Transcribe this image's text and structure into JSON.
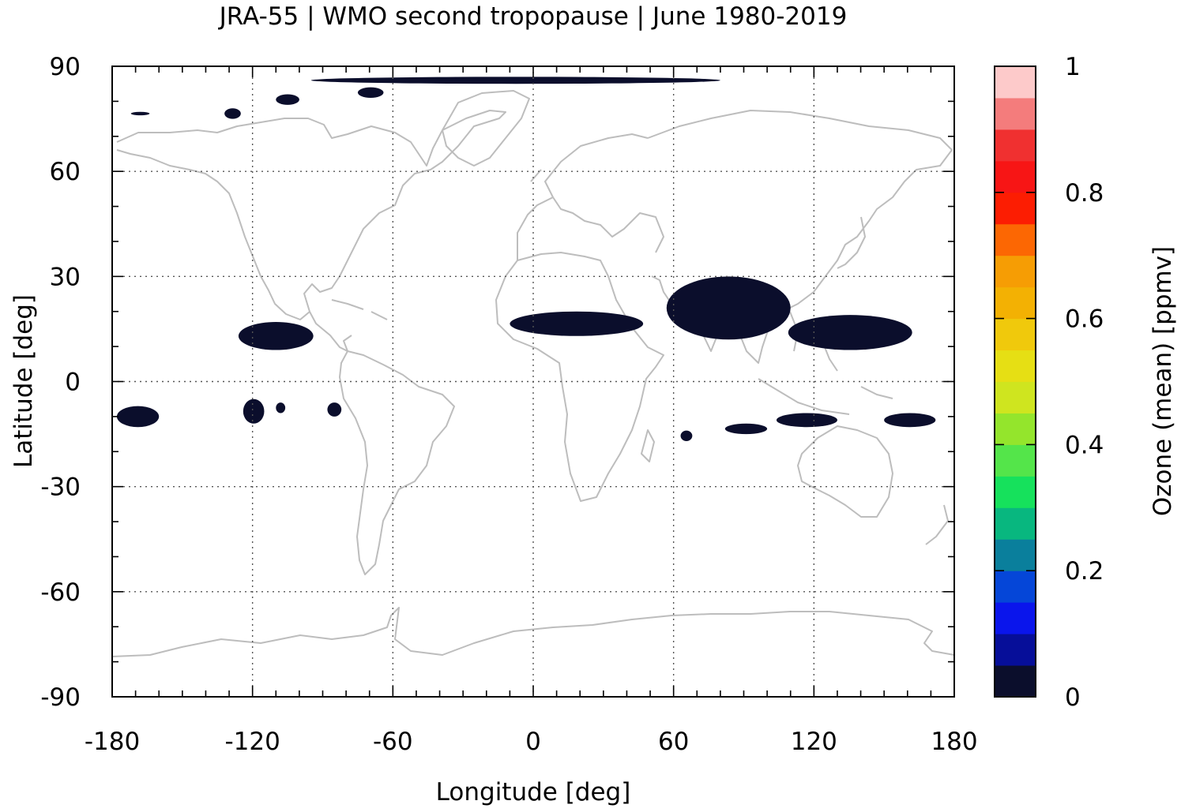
{
  "chart_data": {
    "type": "heatmap",
    "title": "JRA-55 | WMO second tropopause | June 1980-2019",
    "xlabel": "Longitude [deg]",
    "ylabel": "Latitude [deg]",
    "colorbar_label": "Ozone (mean) [ppmv]",
    "xlim": [
      -180,
      180
    ],
    "ylim": [
      -90,
      90
    ],
    "x_ticks": [
      -180,
      -120,
      -60,
      0,
      60,
      120,
      180
    ],
    "y_ticks": [
      -90,
      -60,
      -30,
      0,
      30,
      60,
      90
    ],
    "x_tick_labels": [
      "-180",
      "-120",
      "-60",
      "0",
      "60",
      "120",
      "180"
    ],
    "y_tick_labels": [
      "-90",
      "-60",
      "-30",
      "0",
      "30",
      "60",
      "90"
    ],
    "colorbar": {
      "range": [
        0,
        1
      ],
      "ticks": [
        0,
        0.2,
        0.4,
        0.6,
        0.8,
        1
      ],
      "tick_labels": [
        "0",
        "0.2",
        "0.4",
        "0.6",
        "0.8",
        "1"
      ],
      "colors": [
        "#0b0e2c",
        "#060e99",
        "#0a15ec",
        "#0546d8",
        "#0a7f9c",
        "#08b77f",
        "#16e15c",
        "#54e54a",
        "#94e52c",
        "#cfe51f",
        "#e6df14",
        "#f0c90c",
        "#f3b103",
        "#f69d04",
        "#fc6703",
        "#fc1d02",
        "#f71515",
        "#f03030",
        "#f47c7c",
        "#fdcaca"
      ]
    },
    "grid": true,
    "coastline_color": "#bbbbbb",
    "regions": [
      {
        "lon": [
          -95,
          80
        ],
        "lat": [
          85,
          87
        ],
        "value": 0.02
      },
      {
        "lon": [
          -75,
          -64
        ],
        "lat": [
          81,
          84
        ],
        "value": 0.02
      },
      {
        "lon": [
          -172,
          -164
        ],
        "lat": [
          76,
          77
        ],
        "value": 0.02
      },
      {
        "lon": [
          -132,
          -125
        ],
        "lat": [
          75,
          78
        ],
        "value": 0.02
      },
      {
        "lon": [
          -110,
          -100
        ],
        "lat": [
          79,
          82
        ],
        "value": 0.02
      },
      {
        "lon": [
          -10,
          47
        ],
        "lat": [
          13,
          20
        ],
        "value": 0.02
      },
      {
        "lon": [
          57,
          110
        ],
        "lat": [
          12,
          30
        ],
        "value": 0.02
      },
      {
        "lon": [
          109,
          162
        ],
        "lat": [
          9,
          19
        ],
        "value": 0.02
      },
      {
        "lon": [
          -126,
          -94
        ],
        "lat": [
          9,
          17
        ],
        "value": 0.02
      },
      {
        "lon": [
          -124,
          -115
        ],
        "lat": [
          -12,
          -5
        ],
        "value": 0.02
      },
      {
        "lon": [
          -178,
          -160
        ],
        "lat": [
          -13,
          -7
        ],
        "value": 0.02
      },
      {
        "lon": [
          -110,
          -106
        ],
        "lat": [
          -9,
          -6
        ],
        "value": 0.02
      },
      {
        "lon": [
          -88,
          -82
        ],
        "lat": [
          -10,
          -6
        ],
        "value": 0.02
      },
      {
        "lon": [
          63,
          68
        ],
        "lat": [
          -17,
          -14
        ],
        "value": 0.02
      },
      {
        "lon": [
          82,
          100
        ],
        "lat": [
          -15,
          -12
        ],
        "value": 0.02
      },
      {
        "lon": [
          104,
          130
        ],
        "lat": [
          -13,
          -9
        ],
        "value": 0.02
      },
      {
        "lon": [
          150,
          172
        ],
        "lat": [
          -13,
          -9
        ],
        "value": 0.02
      }
    ]
  }
}
